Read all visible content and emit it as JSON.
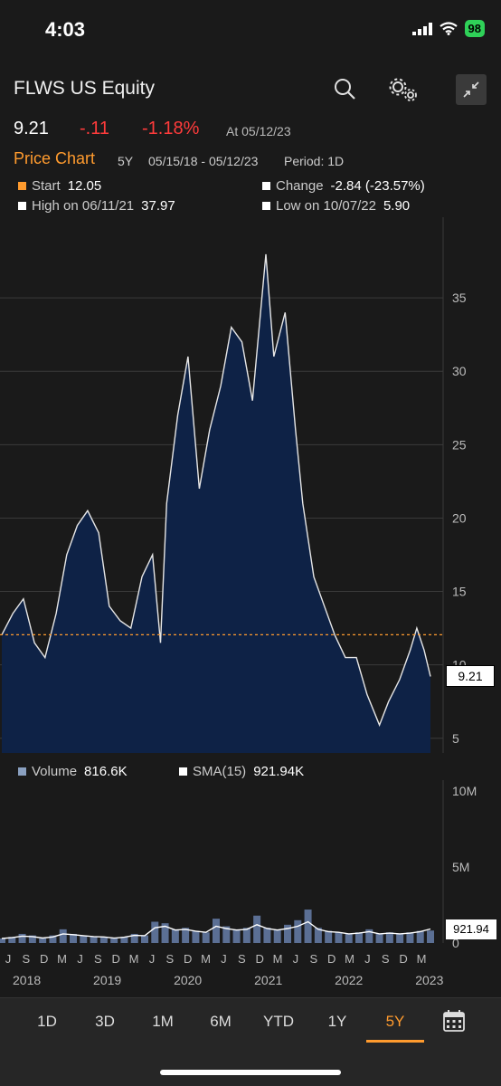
{
  "status_bar": {
    "time": "4:03",
    "battery": "98"
  },
  "header": {
    "title": "FLWS US Equity"
  },
  "quote": {
    "price": "9.21",
    "change": "-.11",
    "change_pct": "-1.18%",
    "as_of": "At 05/12/23"
  },
  "chart_header": {
    "title": "Price Chart",
    "range": "5Y",
    "dates": "05/15/18 - 05/12/23",
    "period": "Period: 1D"
  },
  "stats": {
    "start_label": "Start",
    "start_value": "12.05",
    "change_label": "Change",
    "change_value": "-2.84 (-23.57%)",
    "high_label": "High on 06/11/21",
    "high_value": "37.97",
    "low_label": "Low on 10/07/22",
    "low_value": "5.90"
  },
  "price_axis_labels": [
    "35",
    "30",
    "25",
    "20",
    "15",
    "10",
    "5"
  ],
  "price_last_tag": "9.21",
  "volume_legend": {
    "volume_label": "Volume",
    "volume_value": "816.6K",
    "sma_label": "SMA(15)",
    "sma_value": "921.94K"
  },
  "volume_axis_labels": [
    "10M",
    "5M",
    "0"
  ],
  "volume_last_tag": "921.94",
  "x_axis_months": [
    "J",
    "S",
    "D",
    "M",
    "J",
    "S",
    "D",
    "M",
    "J",
    "S",
    "D",
    "M",
    "J",
    "S",
    "D",
    "M",
    "J",
    "S",
    "D",
    "M",
    "J",
    "S",
    "D",
    "M"
  ],
  "x_axis_years": [
    "2018",
    "2019",
    "2020",
    "2021",
    "2022",
    "2023"
  ],
  "tabs": [
    "1D",
    "3D",
    "1M",
    "6M",
    "YTD",
    "1Y",
    "5Y"
  ],
  "active_tab": "5Y",
  "colors": {
    "accent": "#ff9b2e",
    "negative": "#ff3b3b",
    "area_fill": "#0e2246",
    "background": "#1a1a1a"
  },
  "chart_data": [
    {
      "type": "area",
      "x": [
        "2018-05-15",
        "2018-07-01",
        "2018-08-15",
        "2018-10-01",
        "2018-11-15",
        "2019-01-01",
        "2019-02-15",
        "2019-04-01",
        "2019-05-15",
        "2019-07-01",
        "2019-08-15",
        "2019-10-01",
        "2019-11-15",
        "2020-01-01",
        "2020-02-15",
        "2020-03-20",
        "2020-04-15",
        "2020-06-01",
        "2020-07-15",
        "2020-09-01",
        "2020-10-15",
        "2020-12-01",
        "2021-01-15",
        "2021-03-01",
        "2021-04-15",
        "2021-06-11",
        "2021-07-15",
        "2021-09-01",
        "2021-10-15",
        "2021-11-15",
        "2022-01-01",
        "2022-02-15",
        "2022-04-01",
        "2022-05-15",
        "2022-07-01",
        "2022-08-15",
        "2022-10-07",
        "2022-11-15",
        "2023-01-01",
        "2023-02-15",
        "2023-03-15",
        "2023-04-15",
        "2023-05-12"
      ],
      "values": [
        12.05,
        13.5,
        14.5,
        11.5,
        10.5,
        13.5,
        17.5,
        19.5,
        20.5,
        19,
        14,
        13,
        12.5,
        16,
        17.5,
        11.5,
        21,
        27,
        31,
        22,
        26,
        29,
        33,
        32,
        28,
        37.97,
        31,
        34,
        26,
        21,
        16,
        14,
        12,
        10.5,
        10.5,
        8,
        5.9,
        7.5,
        9,
        11,
        12.5,
        11,
        9.21
      ],
      "ylim": [
        4,
        40
      ],
      "reference_line": 12.05,
      "last_value": 9.21
    },
    {
      "type": "bar",
      "series": [
        {
          "name": "Volume",
          "values": [
            0.3,
            0.4,
            0.6,
            0.5,
            0.3,
            0.5,
            0.9,
            0.6,
            0.5,
            0.4,
            0.4,
            0.3,
            0.4,
            0.6,
            0.5,
            1.4,
            1.3,
            0.9,
            1.0,
            0.8,
            0.7,
            1.6,
            1.1,
            0.9,
            1.0,
            1.8,
            1.0,
            0.9,
            1.2,
            1.5,
            2.2,
            1.0,
            0.8,
            0.7,
            0.6,
            0.7,
            0.9,
            0.6,
            0.7,
            0.6,
            0.7,
            0.8,
            0.82
          ]
        },
        {
          "name": "SMA(15)",
          "values": [
            0.3,
            0.35,
            0.45,
            0.42,
            0.33,
            0.4,
            0.6,
            0.55,
            0.48,
            0.42,
            0.4,
            0.32,
            0.38,
            0.5,
            0.48,
            1.0,
            1.1,
            0.85,
            0.9,
            0.78,
            0.7,
            1.1,
            0.95,
            0.85,
            0.9,
            1.2,
            0.95,
            0.85,
            0.95,
            1.1,
            1.4,
            0.9,
            0.75,
            0.7,
            0.6,
            0.65,
            0.75,
            0.6,
            0.65,
            0.6,
            0.65,
            0.75,
            0.92
          ]
        }
      ],
      "ylim": [
        0,
        10
      ],
      "ylabel": "",
      "last_value": 921.94
    }
  ]
}
